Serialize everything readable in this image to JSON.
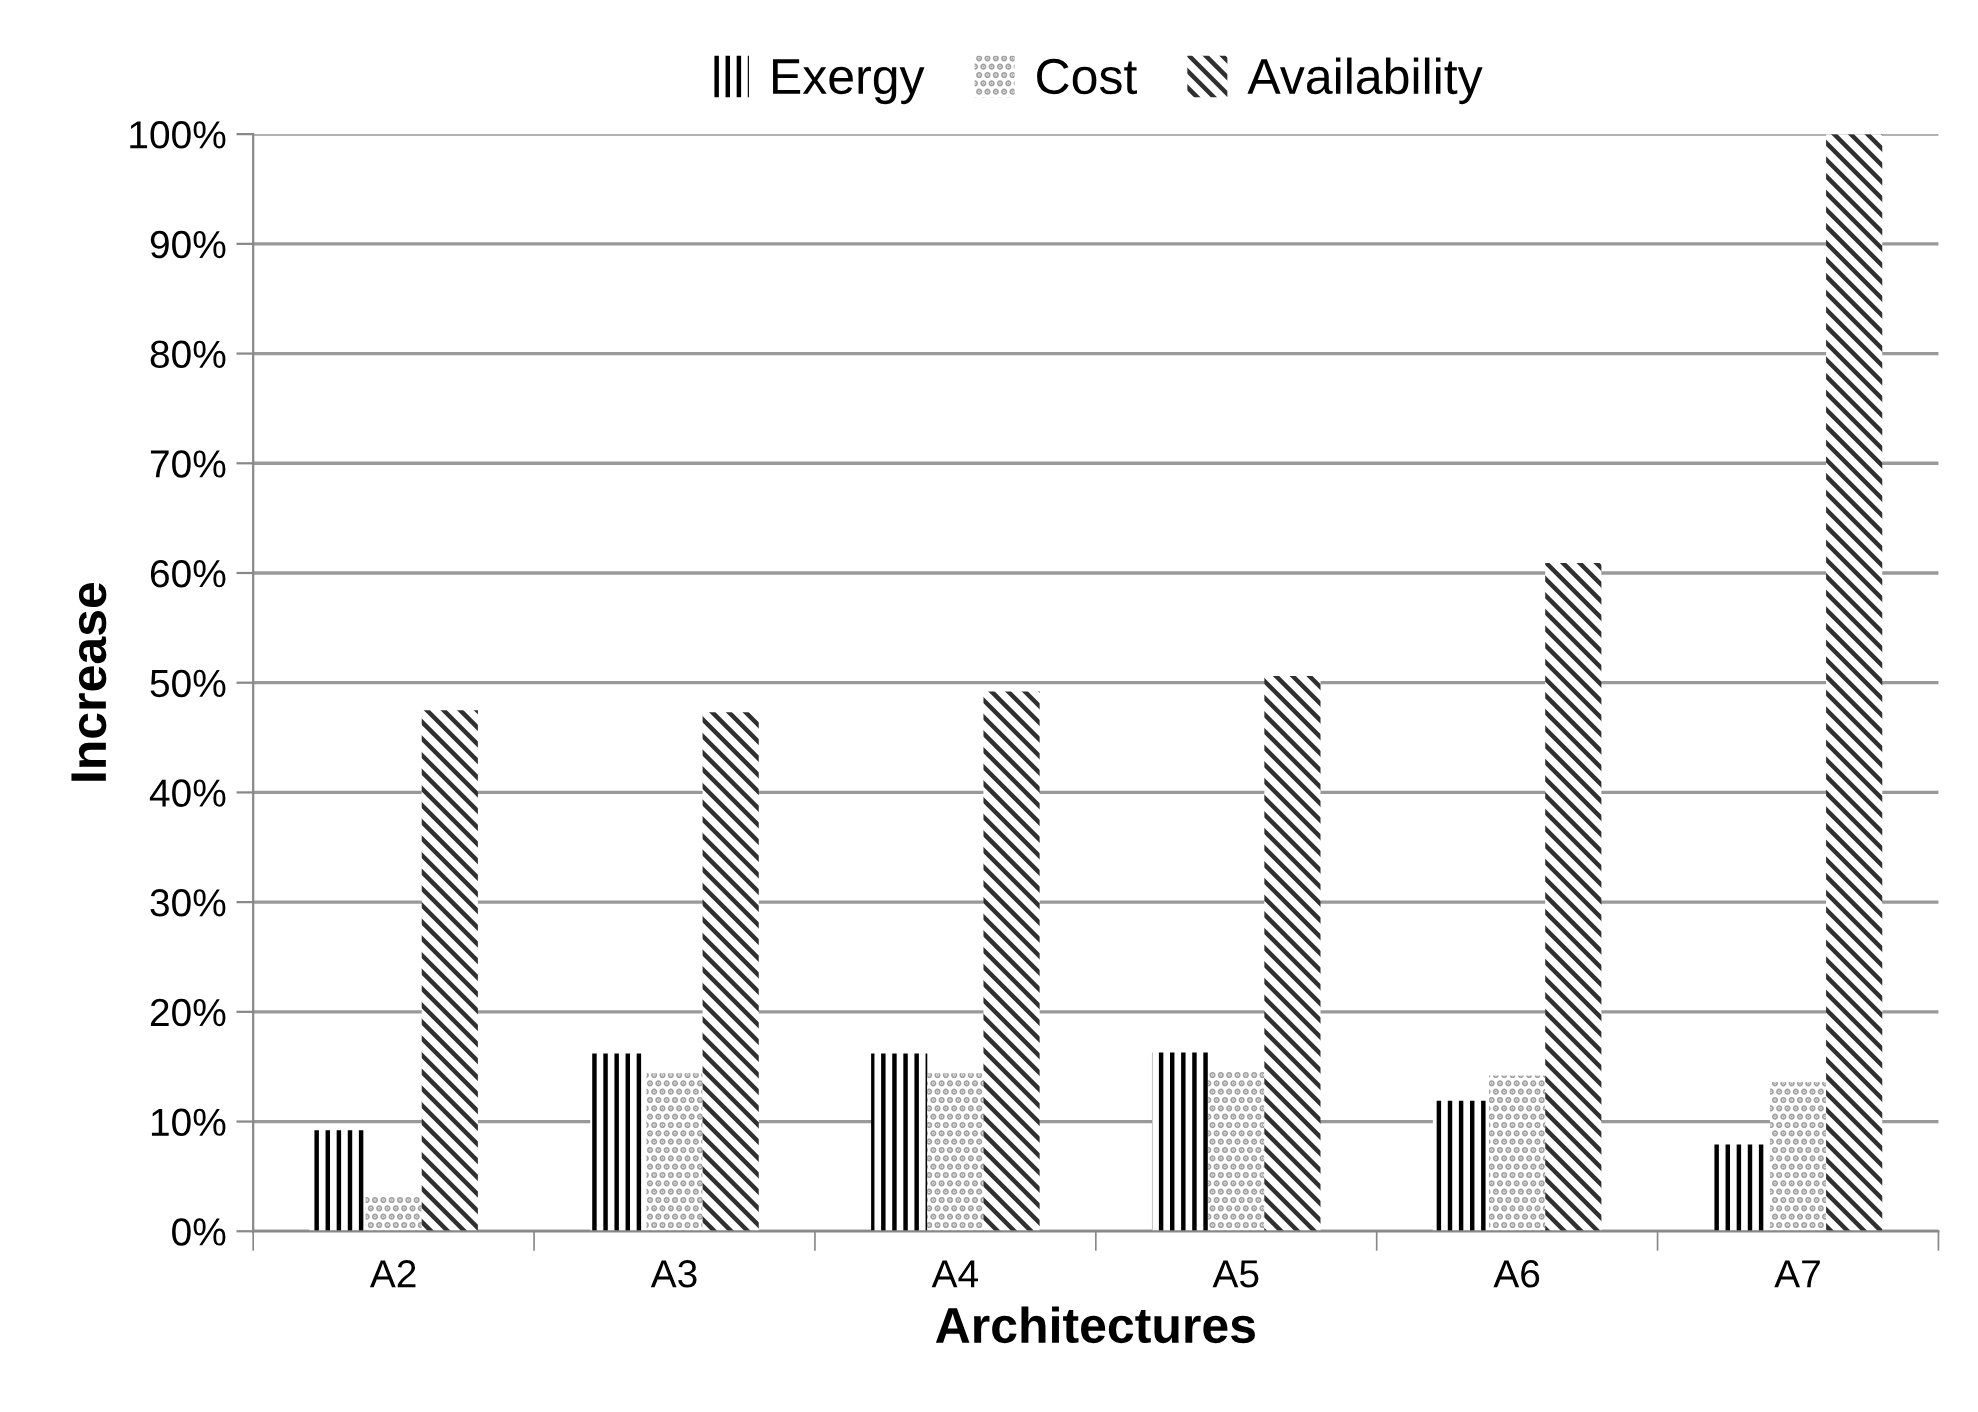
{
  "chart_data": {
    "type": "bar",
    "xlabel": "Architectures",
    "ylabel": "Increase",
    "categories": [
      "A2",
      "A3",
      "A4",
      "A5",
      "A6",
      "A7"
    ],
    "series": [
      {
        "name": "Exergy",
        "color": "#000000",
        "values": [
          9.2,
          16.2,
          16.2,
          16.3,
          11.9,
          7.9
        ]
      },
      {
        "name": "Cost",
        "color": "#a0a0a0",
        "values": [
          3.2,
          14.4,
          14.4,
          14.7,
          14.2,
          13.6
        ]
      },
      {
        "name": "Availability",
        "color": "#303030",
        "values": [
          47.5,
          47.3,
          49.2,
          50.6,
          60.9,
          100
        ]
      }
    ],
    "ylim": [
      0,
      100
    ],
    "yticks": [
      {
        "value": 0,
        "label": "0%"
      },
      {
        "value": 10,
        "label": "10%"
      },
      {
        "value": 20,
        "label": "20%"
      },
      {
        "value": 30,
        "label": "30%"
      },
      {
        "value": 40,
        "label": "40%"
      },
      {
        "value": 50,
        "label": "50%"
      },
      {
        "value": 60,
        "label": "60%"
      },
      {
        "value": 70,
        "label": "70%"
      },
      {
        "value": 80,
        "label": "80%"
      },
      {
        "value": 90,
        "label": "90%"
      },
      {
        "value": 100,
        "label": "100%"
      }
    ],
    "grid": "y",
    "legend": "top"
  }
}
